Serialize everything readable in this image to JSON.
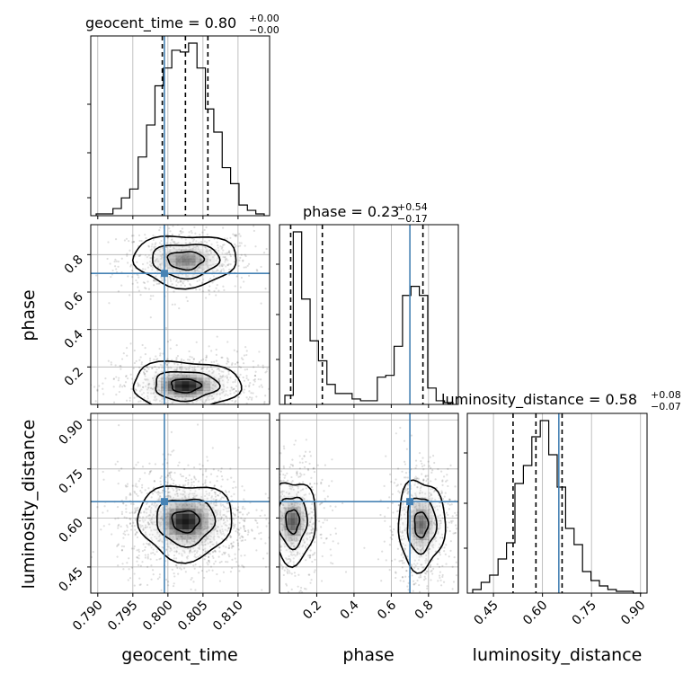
{
  "chart_data": {
    "type": "corner",
    "truth_color": "#4682b4",
    "parameters": [
      {
        "name": "geocent_time",
        "label": "geocent_time",
        "title": {
          "prefix": "geocent_time = 0.80",
          "upper": "+0.00",
          "lower": "−0.00"
        },
        "range": [
          0.789,
          0.8145
        ],
        "ticks": [
          "0.790",
          "0.795",
          "0.800",
          "0.805",
          "0.810"
        ],
        "tick_values": [
          0.79,
          0.795,
          0.8,
          0.805,
          0.81
        ],
        "truth": 0.7995,
        "quantiles": [
          0.7992,
          0.8025,
          0.8057
        ],
        "hist": [
          0.01,
          0.01,
          0.04,
          0.1,
          0.15,
          0.33,
          0.51,
          0.73,
          0.83,
          0.93,
          0.92,
          0.97,
          0.83,
          0.6,
          0.47,
          0.27,
          0.18,
          0.06,
          0.03,
          0.01
        ]
      },
      {
        "name": "phase",
        "label": "phase",
        "title": {
          "prefix": "phase = 0.23",
          "upper": "+0.54",
          "lower": "−0.17"
        },
        "range": [
          0.0,
          0.96
        ],
        "ticks": [
          "0.2",
          "0.4",
          "0.6",
          "0.8"
        ],
        "tick_values": [
          0.2,
          0.4,
          0.6,
          0.8
        ],
        "truth": 0.7,
        "quantiles": [
          0.06,
          0.23,
          0.77
        ],
        "hist": [
          0.05,
          0.95,
          0.58,
          0.35,
          0.24,
          0.11,
          0.06,
          0.06,
          0.03,
          0.02,
          0.02,
          0.15,
          0.16,
          0.32,
          0.6,
          0.65,
          0.6,
          0.09,
          0.02,
          0.01
        ]
      },
      {
        "name": "luminosity_distance",
        "label": "luminosity_distance",
        "title": {
          "prefix": "luminosity_distance = 0.58",
          "upper": "+0.08",
          "lower": "−0.07"
        },
        "range": [
          0.37,
          0.92
        ],
        "ticks": [
          "0.45",
          "0.60",
          "0.75",
          "0.90"
        ],
        "tick_values": [
          0.45,
          0.6,
          0.75,
          0.9
        ],
        "truth": 0.65,
        "quantiles": [
          0.51,
          0.58,
          0.66
        ],
        "hist": [
          0.02,
          0.06,
          0.1,
          0.19,
          0.28,
          0.61,
          0.71,
          0.87,
          0.96,
          0.77,
          0.59,
          0.36,
          0.27,
          0.12,
          0.07,
          0.04,
          0.02,
          0.01,
          0.01,
          0.0
        ]
      }
    ],
    "phase_ylim": [
      0.0,
      0.96
    ],
    "phase_yticks": [
      "0.2",
      "0.4",
      "0.6",
      "0.8"
    ],
    "phase_ytick_values": [
      0.2,
      0.4,
      0.6,
      0.8
    ],
    "lum_ylim": [
      0.37,
      0.92
    ],
    "lum_yticks": [
      "0.45",
      "0.60",
      "0.75",
      "0.90"
    ],
    "lum_ytick_values": [
      0.45,
      0.6,
      0.75,
      0.9
    ],
    "grid": true
  }
}
